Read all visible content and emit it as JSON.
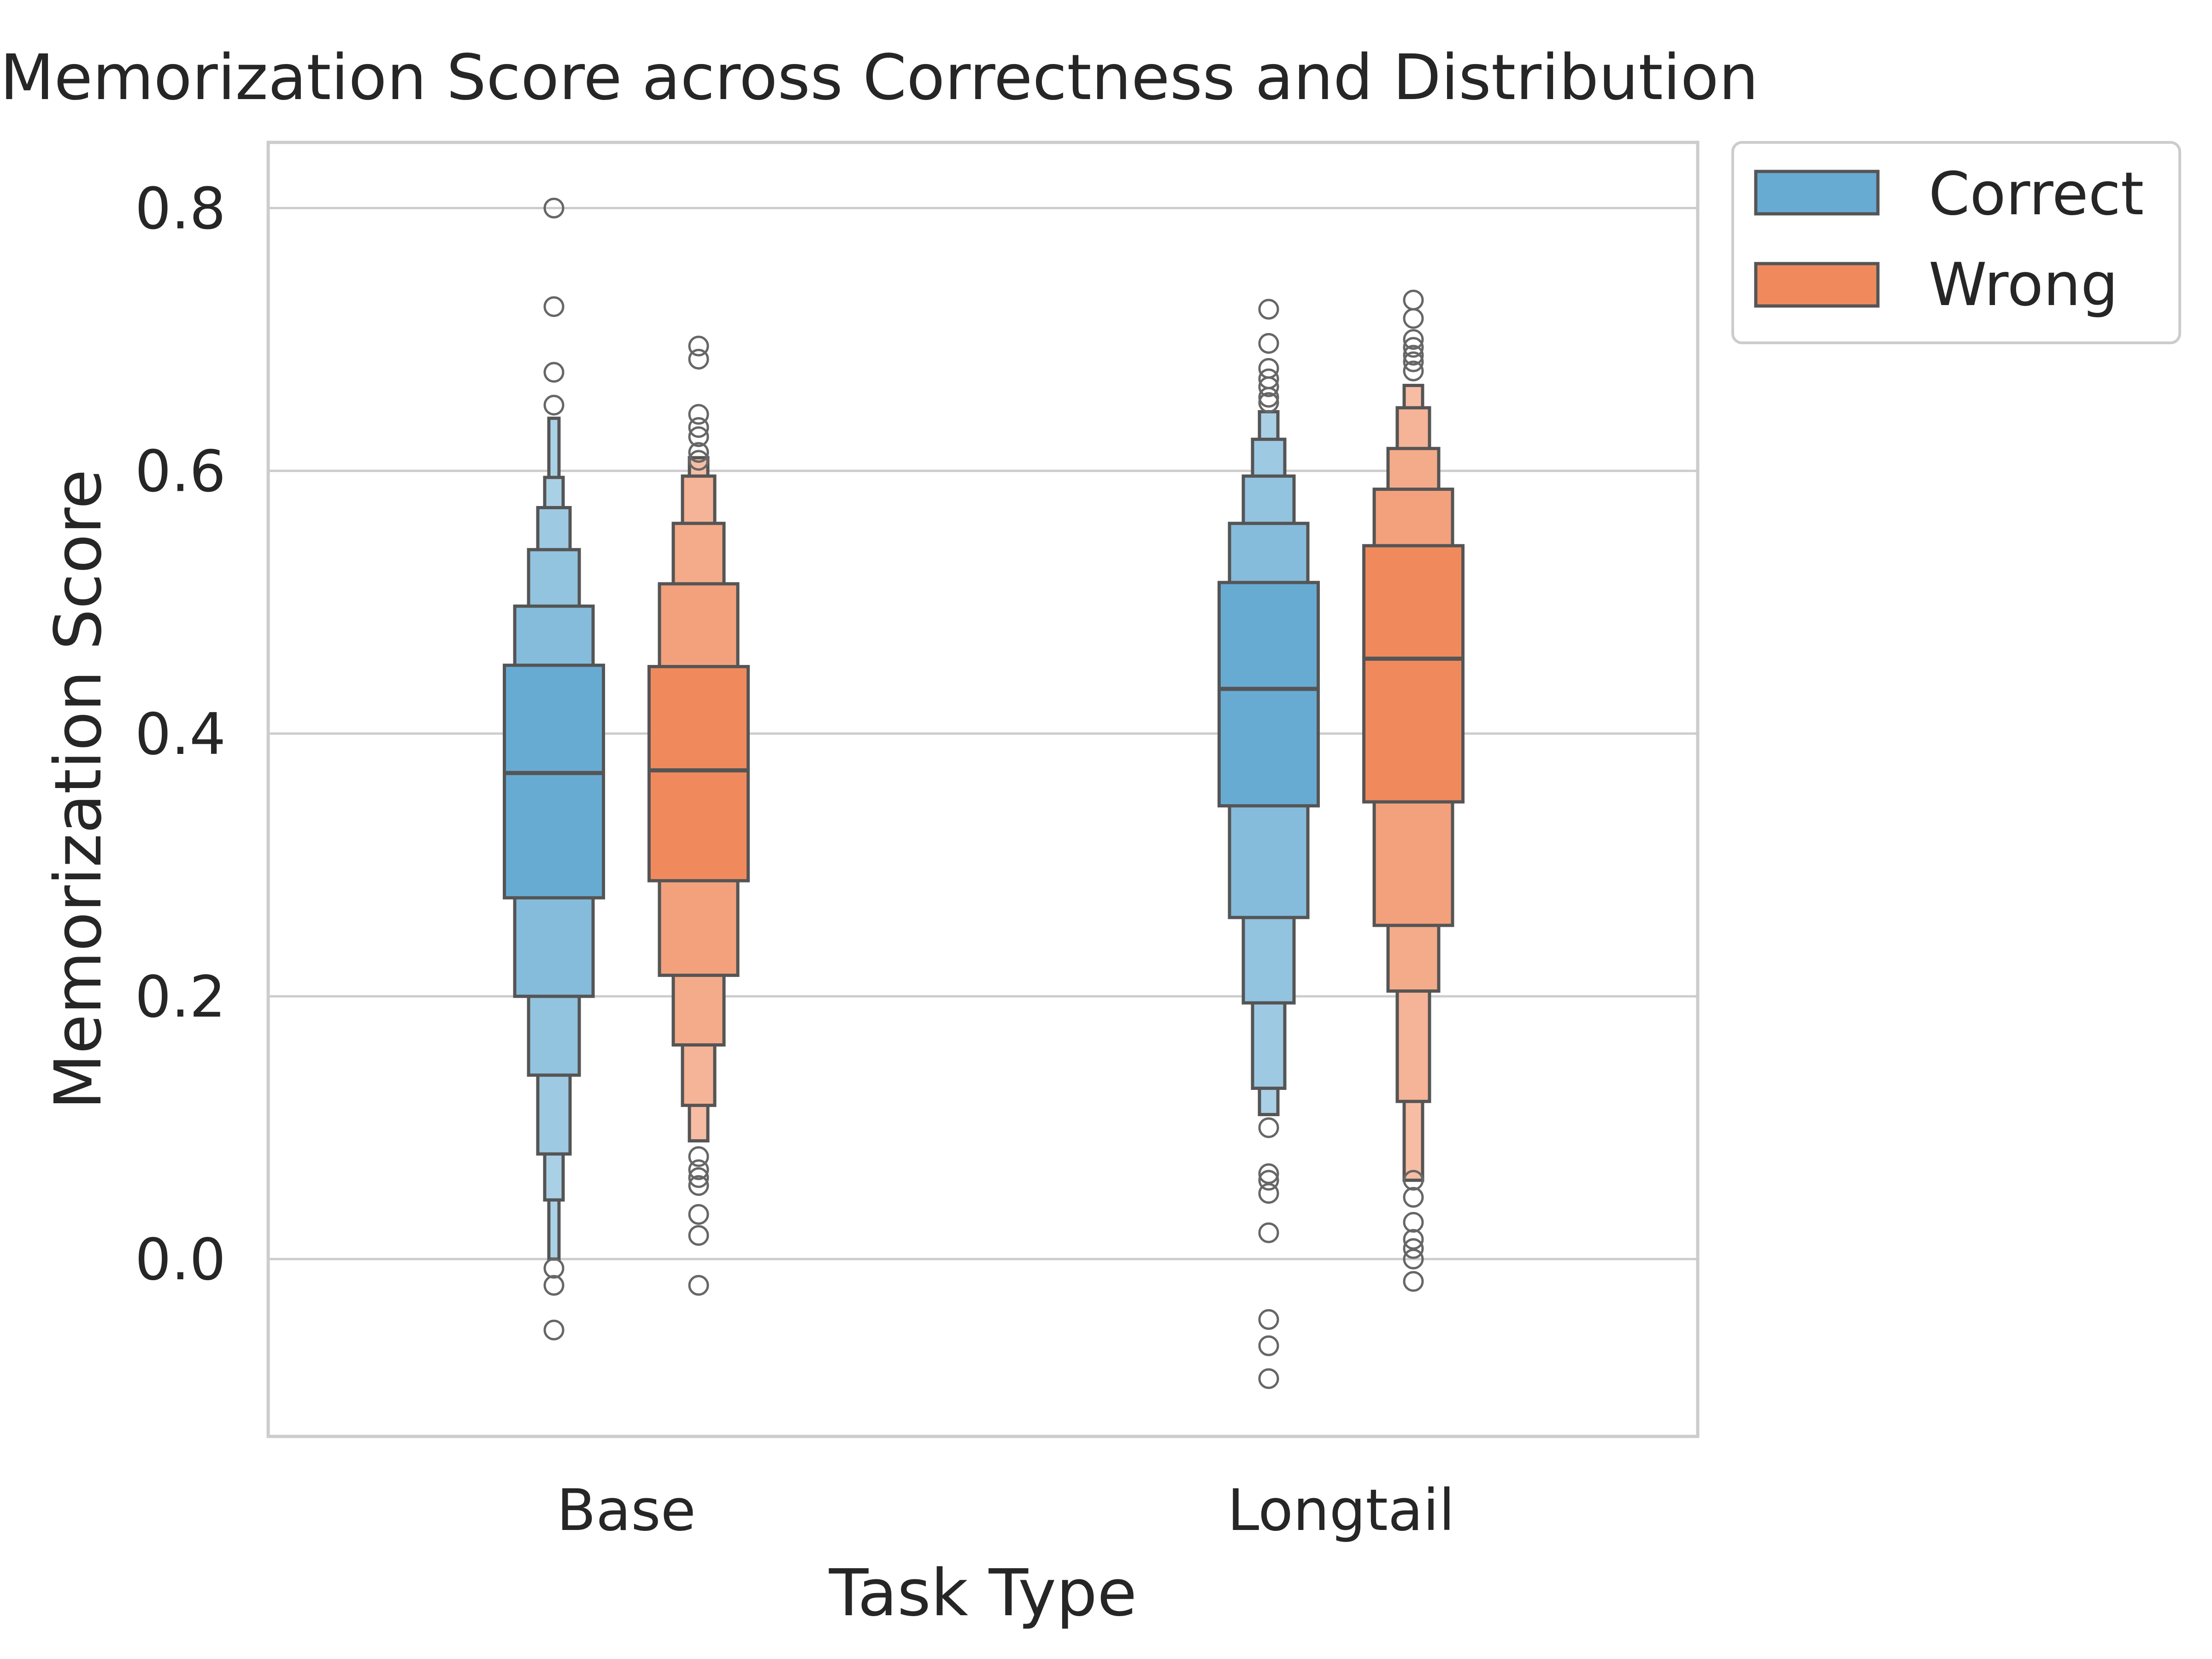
{
  "chart_data": {
    "type": "boxen",
    "title": "Memorization Score across Correctness and Distribution",
    "xlabel": "Task Type",
    "ylabel": "Memorization Score",
    "categories": [
      "Base",
      "Longtail"
    ],
    "ylim": [
      -0.135,
      0.85
    ],
    "yticks": [
      0.0,
      0.2,
      0.4,
      0.6,
      0.8
    ],
    "ytick_labels": [
      "0.0",
      "0.2",
      "0.4",
      "0.6",
      "0.8"
    ],
    "grid": true,
    "legend_position": "outside-top-right",
    "series": [
      {
        "name": "Correct",
        "color": "#67abd3",
        "groups": [
          {
            "category": "Base",
            "median": 0.37,
            "levels": [
              [
                0.275,
                0.452
              ],
              [
                0.2,
                0.497
              ],
              [
                0.14,
                0.54
              ],
              [
                0.08,
                0.572
              ],
              [
                0.045,
                0.595
              ],
              [
                0.0,
                0.64
              ]
            ],
            "outliers": [
              0.8,
              0.725,
              0.675,
              0.65,
              -0.007,
              -0.02,
              -0.054
            ]
          },
          {
            "category": "Longtail",
            "median": 0.434,
            "levels": [
              [
                0.345,
                0.515
              ],
              [
                0.26,
                0.56
              ],
              [
                0.195,
                0.596
              ],
              [
                0.13,
                0.624
              ],
              [
                0.11,
                0.645
              ]
            ],
            "outliers": [
              0.723,
              0.697,
              0.678,
              0.67,
              0.664,
              0.656,
              0.652,
              0.1,
              0.065,
              0.06,
              0.05,
              0.02,
              -0.046,
              -0.066,
              -0.091
            ]
          }
        ]
      },
      {
        "name": "Wrong",
        "color": "#f08a5d",
        "groups": [
          {
            "category": "Base",
            "median": 0.372,
            "levels": [
              [
                0.288,
                0.451
              ],
              [
                0.216,
                0.514
              ],
              [
                0.163,
                0.56
              ],
              [
                0.117,
                0.596
              ],
              [
                0.09,
                0.61
              ]
            ],
            "outliers": [
              0.695,
              0.685,
              0.643,
              0.633,
              0.626,
              0.614,
              0.608,
              0.078,
              0.068,
              0.062,
              0.056,
              0.034,
              0.018,
              -0.02
            ]
          },
          {
            "category": "Longtail",
            "median": 0.457,
            "levels": [
              [
                0.348,
                0.543
              ],
              [
                0.254,
                0.586
              ],
              [
                0.204,
                0.617
              ],
              [
                0.12,
                0.648
              ],
              [
                0.06,
                0.665
              ]
            ],
            "outliers": [
              0.73,
              0.716,
              0.7,
              0.694,
              0.688,
              0.683,
              0.676,
              0.06,
              0.047,
              0.028,
              0.015,
              0.008,
              0.0,
              -0.017
            ]
          }
        ]
      }
    ]
  }
}
